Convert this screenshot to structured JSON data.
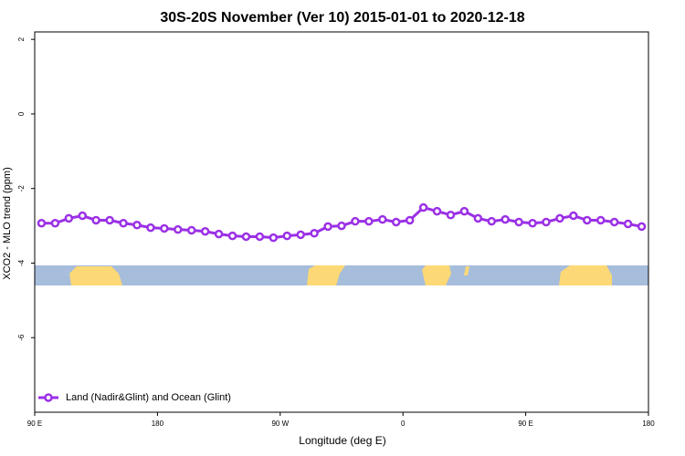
{
  "chart_data": {
    "type": "line",
    "title": "30S-20S November (Ver 10)   2015-01-01 to 2020-12-18",
    "x_label": "Longitude (deg E)",
    "y_label": "XCO2 - MLO trend (ppm)",
    "x": [
      95,
      105,
      115,
      125,
      135,
      145,
      155,
      165,
      175,
      185,
      195,
      205,
      215,
      225,
      235,
      245,
      255,
      265,
      275,
      285,
      295,
      305,
      315,
      325,
      335,
      345,
      355,
      365,
      375,
      385,
      395,
      405,
      415,
      425,
      435,
      445,
      455,
      465,
      475,
      485,
      495,
      505,
      515,
      525,
      535
    ],
    "series": [
      {
        "name": "Land (Nadir&Glint) and Ocean (Glint)",
        "color": "#9b30e6",
        "values": [
          -2.93,
          -2.93,
          -2.8,
          -2.73,
          -2.85,
          -2.85,
          -2.93,
          -2.98,
          -3.05,
          -3.07,
          -3.1,
          -3.12,
          -3.15,
          -3.22,
          -3.27,
          -3.29,
          -3.29,
          -3.32,
          -3.27,
          -3.24,
          -3.2,
          -3.02,
          -3.0,
          -2.88,
          -2.88,
          -2.83,
          -2.9,
          -2.85,
          -2.51,
          -2.61,
          -2.71,
          -2.61,
          -2.8,
          -2.88,
          -2.83,
          -2.9,
          -2.93,
          -2.9,
          -2.8,
          -2.73,
          -2.85,
          -2.85,
          -2.9,
          -2.95,
          -3.02
        ]
      }
    ],
    "xlim": [
      90,
      540
    ],
    "xticks": [
      {
        "value": 90,
        "label": "90 E"
      },
      180,
      {
        "value": 270,
        "label": "90 W"
      },
      {
        "value": 360,
        "label": "0"
      },
      {
        "value": 450,
        "label": "90 E"
      },
      {
        "value": 540,
        "label": "180"
      }
    ],
    "ylim": [
      -8,
      2.2
    ],
    "yticks": [
      2,
      0,
      -2,
      -4,
      -6
    ],
    "legend": "bottom-left"
  }
}
